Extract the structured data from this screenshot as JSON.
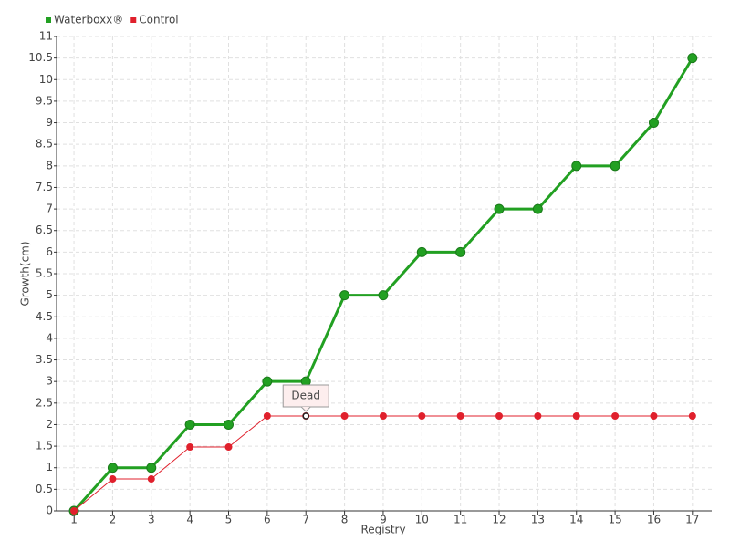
{
  "chart_data": {
    "type": "line",
    "x_label": "Registry",
    "y_label": "Growth(cm)",
    "x": [
      1,
      2,
      3,
      4,
      5,
      6,
      7,
      8,
      9,
      10,
      11,
      12,
      13,
      14,
      15,
      16,
      17
    ],
    "series": [
      {
        "name": "Waterboxx®",
        "color": "#22a022",
        "values": [
          0,
          1,
          1,
          2,
          2,
          3,
          3,
          5,
          5,
          6,
          6,
          7,
          7,
          8,
          8,
          9,
          10.5
        ]
      },
      {
        "name": "Control",
        "color": "#e0202c",
        "values": [
          0,
          0.74,
          0.74,
          1.48,
          1.48,
          2.2,
          2.2,
          2.2,
          2.2,
          2.2,
          2.2,
          2.2,
          2.2,
          2.2,
          2.2,
          2.2,
          2.2
        ]
      }
    ],
    "annotations": [
      {
        "text": "Dead",
        "x": 7,
        "y": 2.2
      }
    ],
    "xlim": [
      0.55,
      17.5
    ],
    "ylim": [
      0,
      11
    ],
    "xticks": [
      1,
      2,
      3,
      4,
      5,
      6,
      7,
      8,
      9,
      10,
      11,
      12,
      13,
      14,
      15,
      16,
      17
    ],
    "yticks": [
      0,
      0.5,
      1,
      1.5,
      2,
      2.5,
      3,
      3.5,
      4,
      4.5,
      5,
      5.5,
      6,
      6.5,
      7,
      7.5,
      8,
      8.5,
      9,
      9.5,
      10,
      10.5,
      11
    ],
    "grid": true,
    "legend": "top-left"
  }
}
